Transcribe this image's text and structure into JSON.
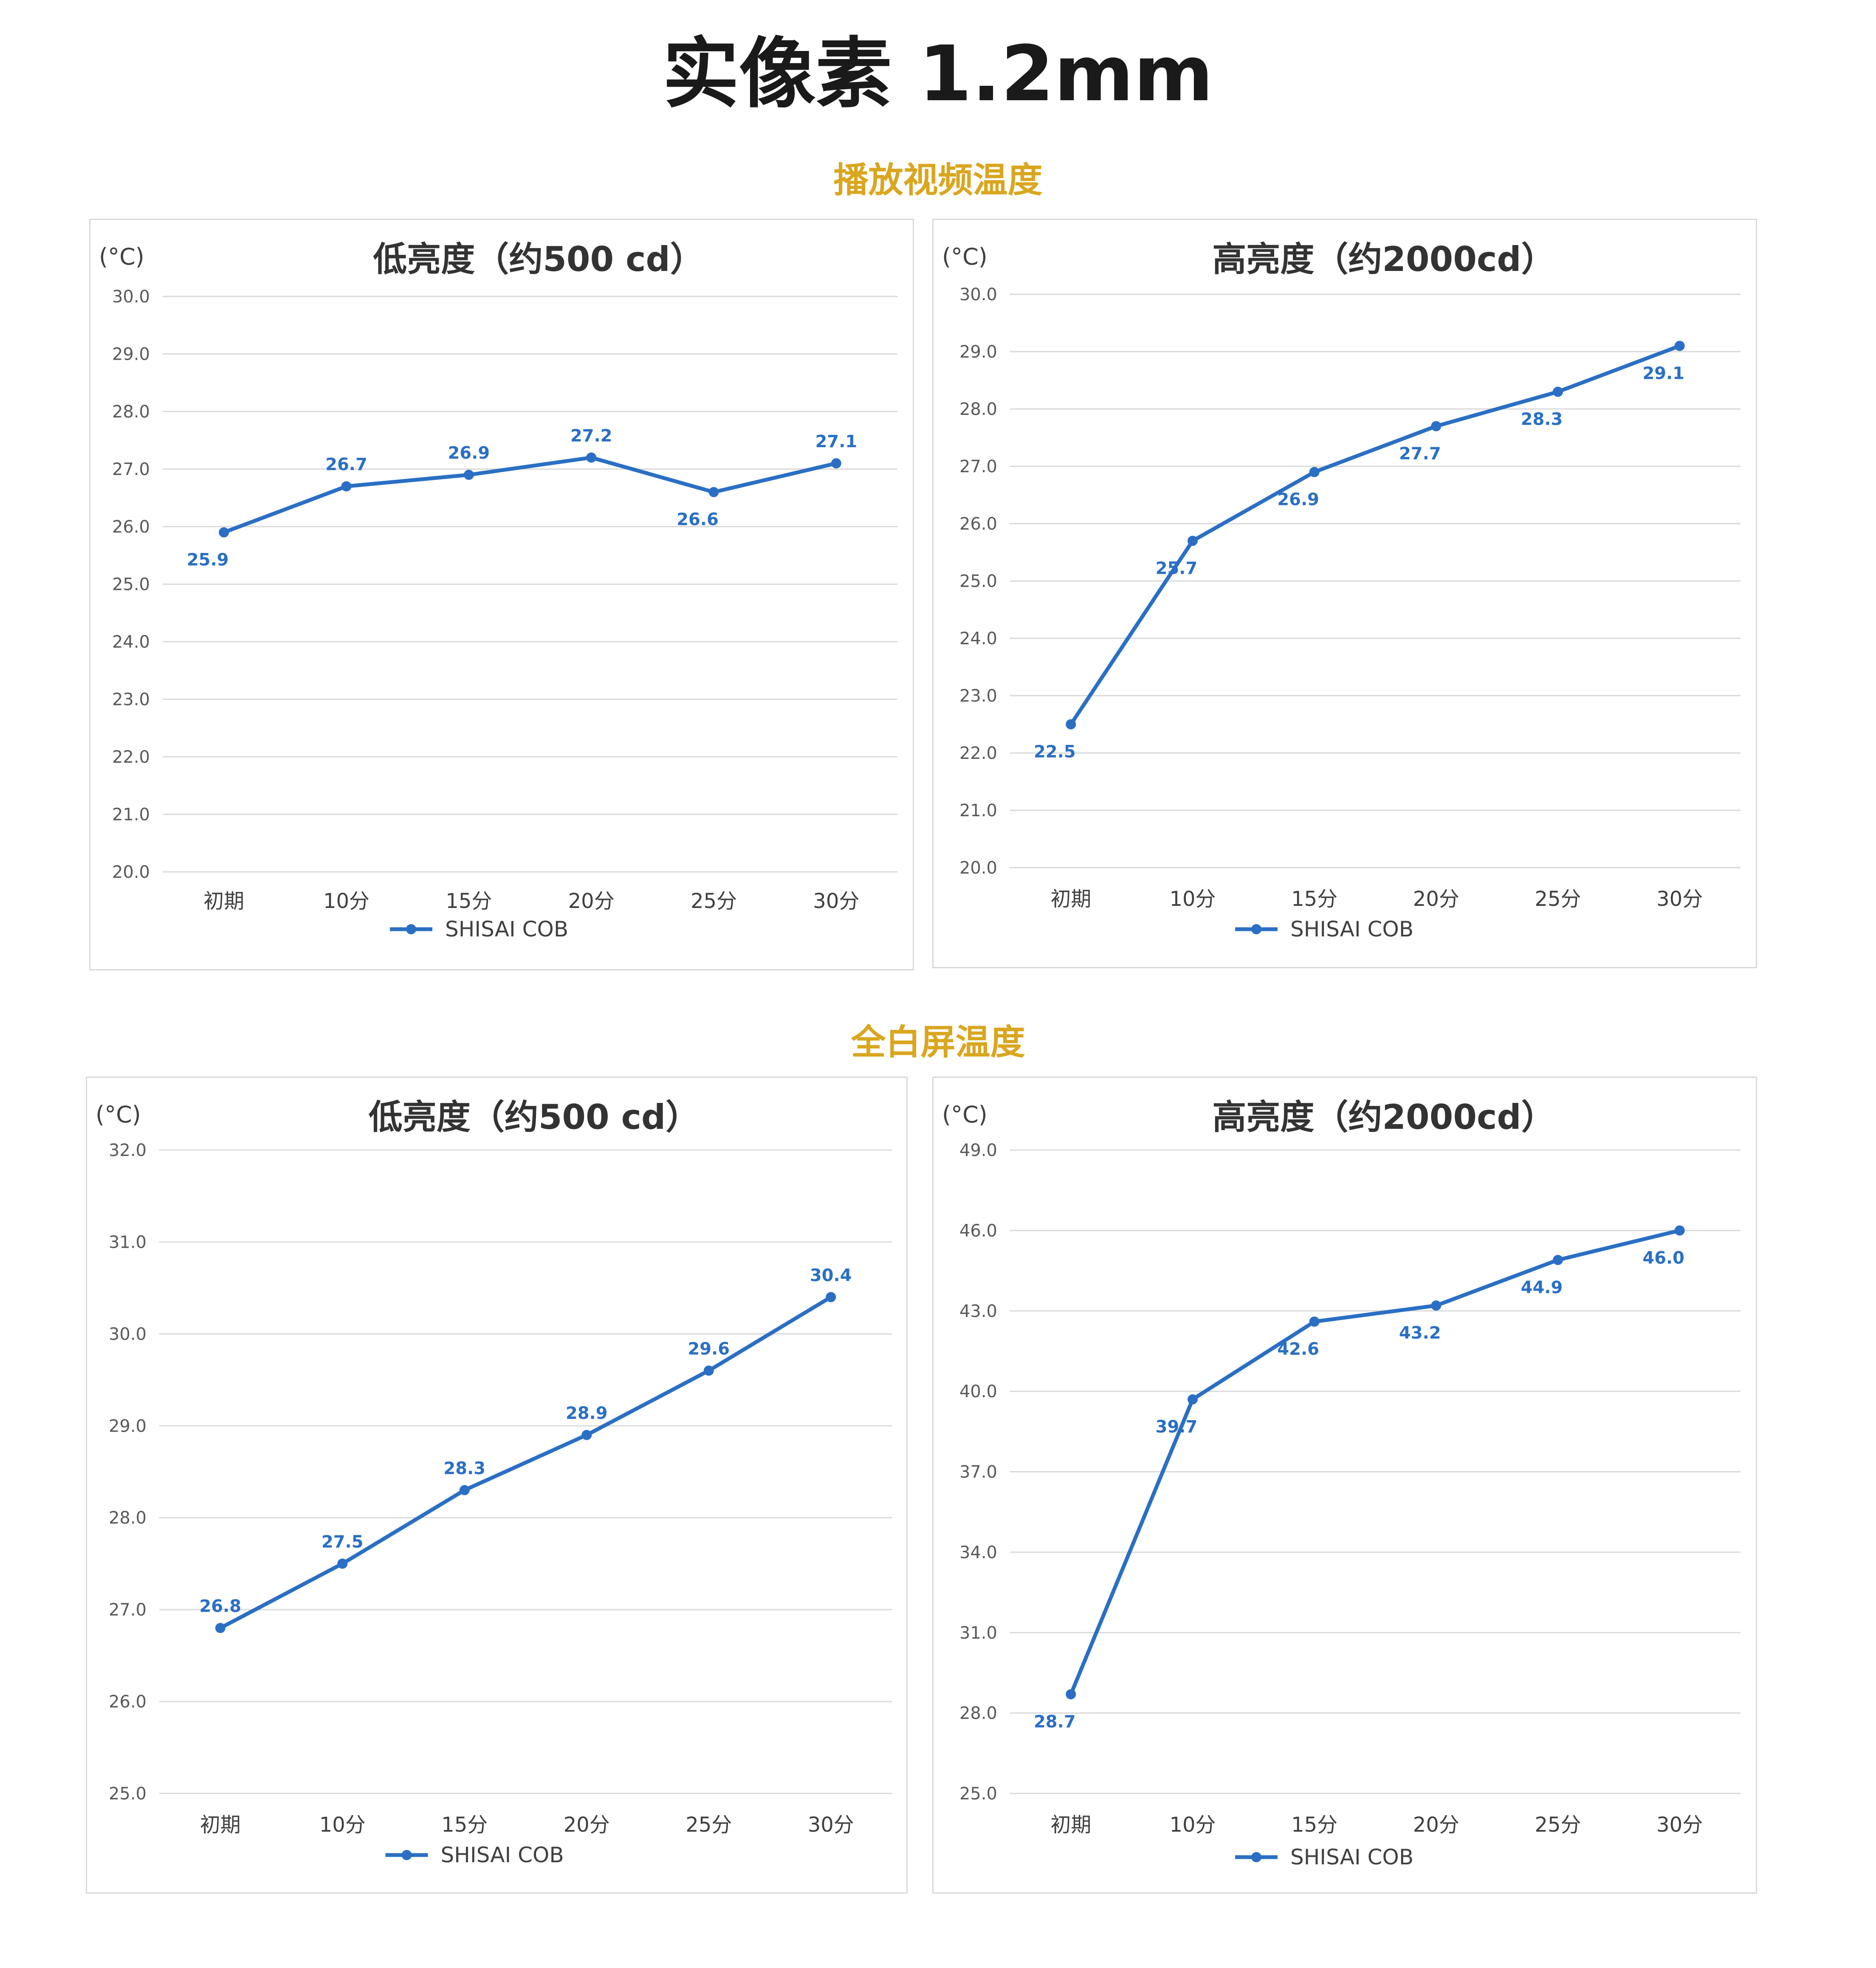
{
  "page_title": "实像素 1.2mm",
  "sections": [
    {
      "title": "播放视频温度"
    },
    {
      "title": "全白屏温度"
    }
  ],
  "colors": {
    "series": "#2a6fc4",
    "section_title": "#d9a61f",
    "grid": "#d9d9d9"
  },
  "chart_data": [
    {
      "type": "line",
      "title": "低亮度（约500 cd）",
      "unit": "(°C)",
      "categories": [
        "初期",
        "10分",
        "15分",
        "20分",
        "25分",
        "30分"
      ],
      "ylim": [
        20.0,
        30.0
      ],
      "yticks": [
        "20.0",
        "21.0",
        "22.0",
        "23.0",
        "24.0",
        "25.0",
        "26.0",
        "27.0",
        "28.0",
        "29.0",
        "30.0"
      ],
      "grid": true,
      "legend": "bottom",
      "series": [
        {
          "name": "SHISAI COB",
          "values": [
            25.9,
            26.7,
            26.9,
            27.2,
            26.6,
            27.1
          ]
        }
      ],
      "label_pos": [
        "below",
        "above",
        "above",
        "above",
        "below",
        "above"
      ]
    },
    {
      "type": "line",
      "title": "高亮度（约2000cd）",
      "unit": "(°C)",
      "categories": [
        "初期",
        "10分",
        "15分",
        "20分",
        "25分",
        "30分"
      ],
      "ylim": [
        20.0,
        30.0
      ],
      "yticks": [
        "20.0",
        "21.0",
        "22.0",
        "23.0",
        "24.0",
        "25.0",
        "26.0",
        "27.0",
        "28.0",
        "29.0",
        "30.0"
      ],
      "grid": true,
      "legend": "bottom",
      "series": [
        {
          "name": "SHISAI COB",
          "values": [
            22.5,
            25.7,
            26.9,
            27.7,
            28.3,
            29.1
          ]
        }
      ],
      "label_pos": [
        "below",
        "below",
        "below",
        "below",
        "below",
        "below"
      ]
    },
    {
      "type": "line",
      "title": "低亮度（约500 cd）",
      "unit": "(°C)",
      "categories": [
        "初期",
        "10分",
        "15分",
        "20分",
        "25分",
        "30分"
      ],
      "ylim": [
        25.0,
        32.0
      ],
      "yticks": [
        "25.0",
        "26.0",
        "27.0",
        "28.0",
        "29.0",
        "30.0",
        "31.0",
        "32.0"
      ],
      "grid": true,
      "legend": "bottom",
      "series": [
        {
          "name": "SHISAI COB",
          "values": [
            26.8,
            27.5,
            28.3,
            28.9,
            29.6,
            30.4
          ]
        }
      ],
      "label_pos": [
        "above",
        "above",
        "above",
        "above",
        "above",
        "above"
      ]
    },
    {
      "type": "line",
      "title": "高亮度（约2000cd）",
      "unit": "(°C)",
      "categories": [
        "初期",
        "10分",
        "15分",
        "20分",
        "25分",
        "30分"
      ],
      "ylim": [
        25.0,
        49.0
      ],
      "yticks": [
        "25.0",
        "28.0",
        "31.0",
        "34.0",
        "37.0",
        "40.0",
        "43.0",
        "46.0",
        "49.0"
      ],
      "grid": true,
      "legend": "bottom",
      "series": [
        {
          "name": "SHISAI COB",
          "values": [
            28.7,
            39.7,
            42.6,
            43.2,
            44.9,
            46.0
          ]
        }
      ],
      "label_pos": [
        "below",
        "below",
        "below",
        "below",
        "below",
        "below"
      ]
    }
  ]
}
